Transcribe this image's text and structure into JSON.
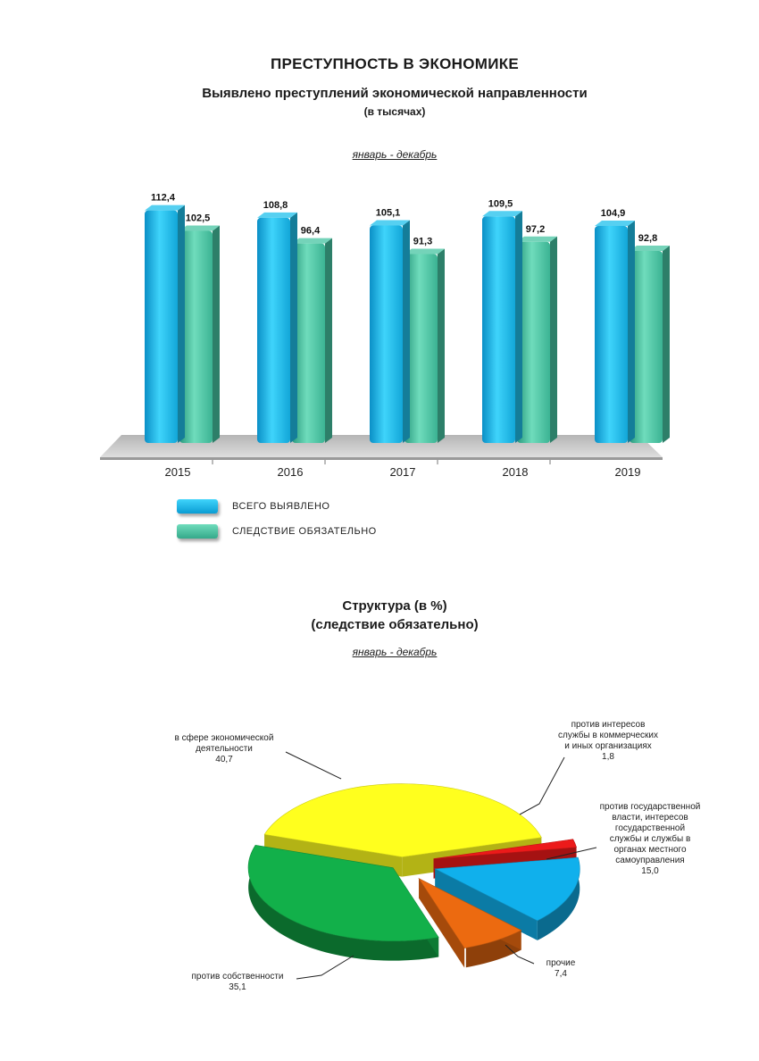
{
  "page": {
    "title": "ПРЕСТУПНОСТЬ В ЭКОНОМИКЕ",
    "subtitle": "Выявлено преступлений экономической направленности",
    "unit": "(в тысячах)"
  },
  "colors": {
    "series_total": "#1ec0ec",
    "series_investigation": "#45c4a2",
    "floor": "#c8c8c8",
    "pie_economic": "#ffff1e",
    "pie_property": "#12b04a",
    "pie_other": "#ec6a10",
    "pie_state": "#10b0ec",
    "pie_commercial": "#ec1a1a"
  },
  "chart_data": [
    {
      "type": "bar",
      "period": "январь - декабрь",
      "categories": [
        "2015",
        "2016",
        "2017",
        "2018",
        "2019"
      ],
      "series": [
        {
          "name": "ВСЕГО ВЫЯВЛЕНО",
          "values": [
            112.4,
            108.8,
            105.1,
            109.5,
            104.9
          ],
          "labels": [
            "112,4",
            "108,8",
            "105,1",
            "109,5",
            "104,9"
          ]
        },
        {
          "name": "СЛЕДСТВИЕ ОБЯЗАТЕЛЬНО",
          "values": [
            102.5,
            96.4,
            91.3,
            97.2,
            92.8
          ],
          "labels": [
            "102,5",
            "96,4",
            "91,3",
            "97,2",
            "92,8"
          ]
        }
      ],
      "legend": "bottom-left"
    },
    {
      "type": "pie",
      "title": "Структура (в %)",
      "subtitle": "(следствие обязательно)",
      "period": "январь - декабрь",
      "slices": [
        {
          "label": "в сфере экономической деятельности",
          "value": 40.7,
          "value_label": "40,7"
        },
        {
          "label": "против интересов службы в коммерческих и иных организациях",
          "value": 1.8,
          "value_label": "1,8"
        },
        {
          "label": "против государственной власти, интересов государственной службы и службы в органах местного самоуправления",
          "value": 15.0,
          "value_label": "15,0"
        },
        {
          "label": "прочие",
          "value": 7.4,
          "value_label": "7,4"
        },
        {
          "label": "против собственности",
          "value": 35.1,
          "value_label": "35,1"
        }
      ]
    }
  ],
  "pie_labels": {
    "economic": {
      "line1": "в сфере экономической",
      "line2": "деятельности",
      "value": "40,7"
    },
    "commercial": {
      "line1": "против интересов",
      "line2": "службы в коммерческих",
      "line3": "и иных организациях",
      "value": "1,8"
    },
    "state": {
      "line1": "против государственной",
      "line2": "власти, интересов",
      "line3": "государственной",
      "line4": "службы и службы в",
      "line5": "органах местного",
      "line6": "самоуправления",
      "value": "15,0"
    },
    "other": {
      "line1": "прочие",
      "value": "7,4"
    },
    "property": {
      "line1": "против собственности",
      "value": "35,1"
    }
  }
}
